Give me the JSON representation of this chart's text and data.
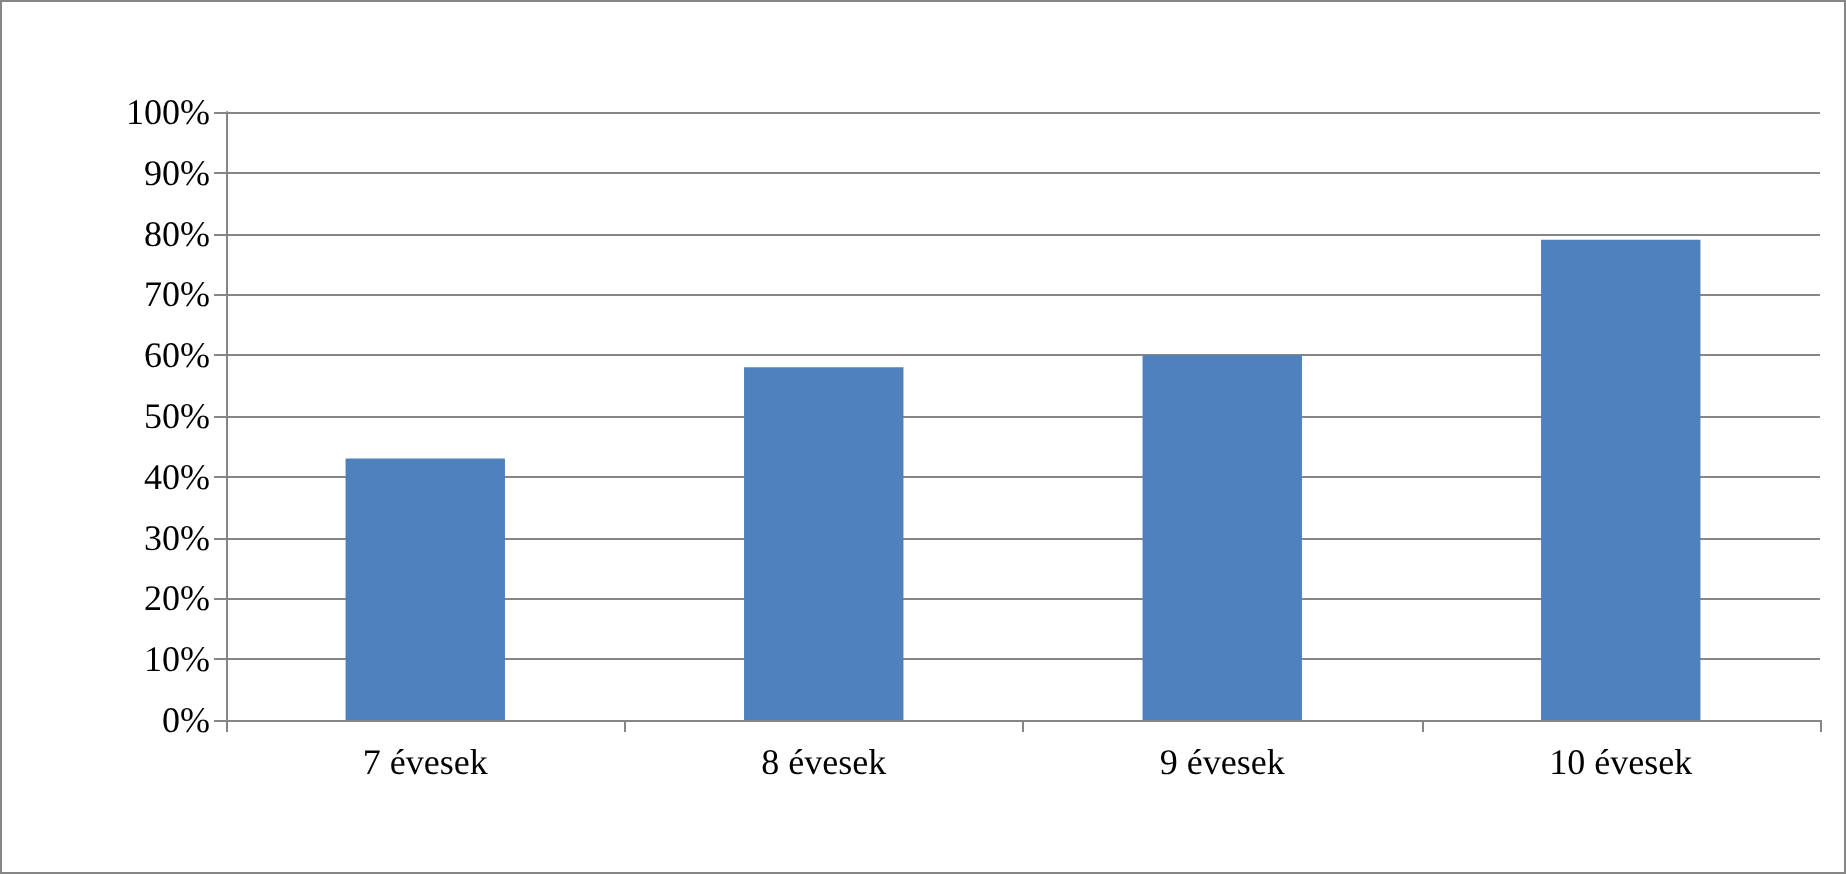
{
  "chart_data": {
    "type": "bar",
    "categories": [
      "7 évesek",
      "8 évesek",
      "9 évesek",
      "10 évesek"
    ],
    "values": [
      43,
      58,
      60,
      79
    ],
    "color": "#4f81bd",
    "ylim": [
      0,
      100
    ],
    "yticks": [
      {
        "value": 0,
        "label": "0%"
      },
      {
        "value": 10,
        "label": "10%"
      },
      {
        "value": 20,
        "label": "20%"
      },
      {
        "value": 30,
        "label": "30%"
      },
      {
        "value": 40,
        "label": "40%"
      },
      {
        "value": 50,
        "label": "50%"
      },
      {
        "value": 60,
        "label": "60%"
      },
      {
        "value": 70,
        "label": "70%"
      },
      {
        "value": 80,
        "label": "80%"
      },
      {
        "value": 90,
        "label": "90%"
      },
      {
        "value": 100,
        "label": "100%"
      }
    ],
    "grid": "y"
  }
}
